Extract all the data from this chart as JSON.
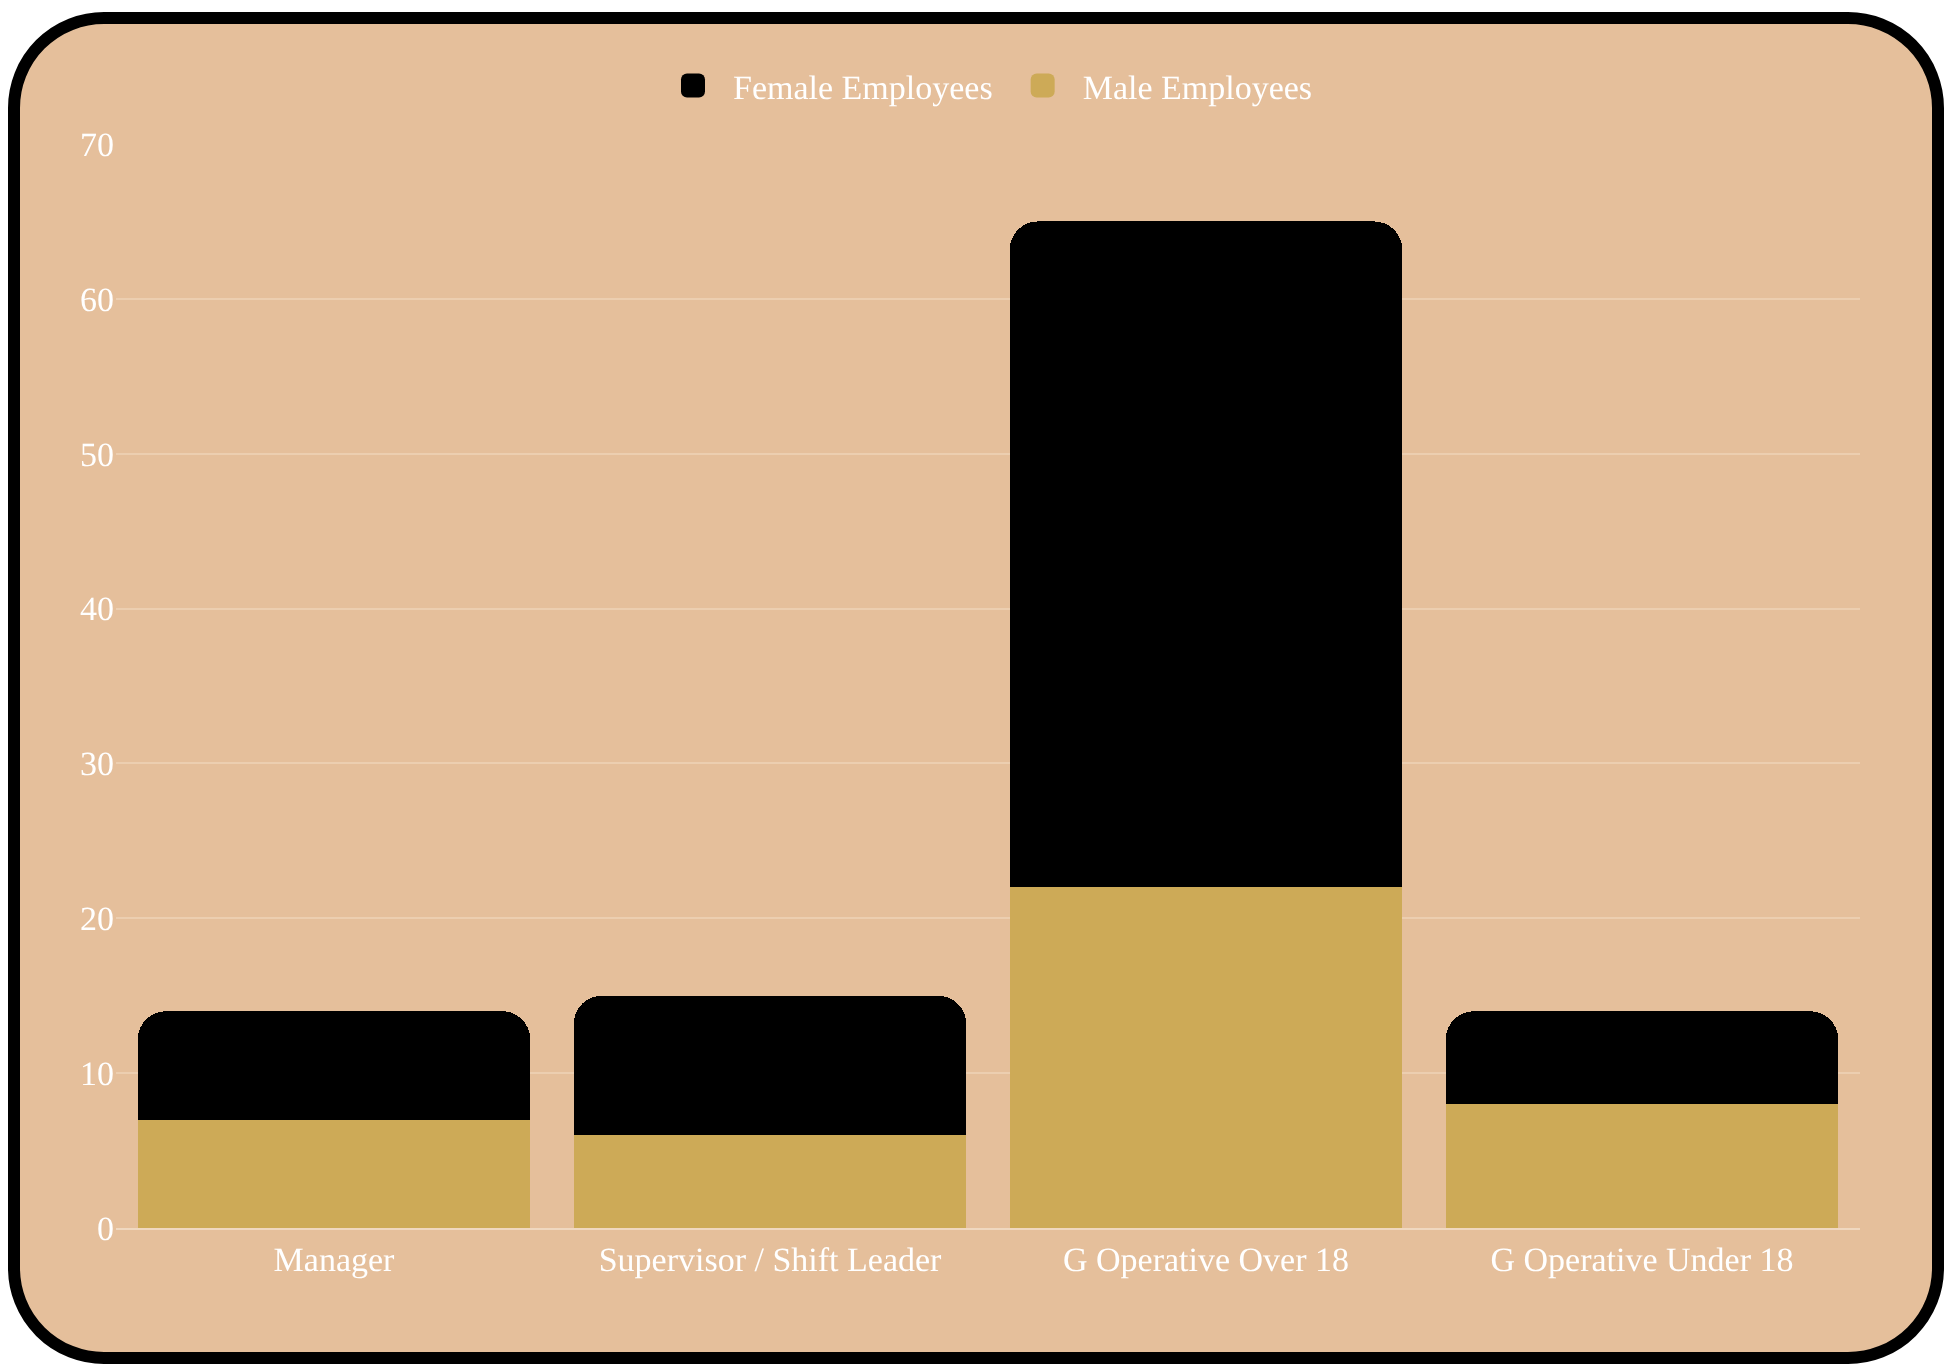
{
  "chart_data": {
    "type": "bar",
    "stacked": true,
    "categories": [
      "Manager",
      "Supervisor / Shift Leader",
      "G Operative Over 18",
      "G Operative Under 18"
    ],
    "series": [
      {
        "name": "Male Employees",
        "color": "#cdaa57",
        "values": [
          7,
          6,
          22,
          8
        ]
      },
      {
        "name": "Female Employees",
        "color": "#000000",
        "values": [
          7,
          9,
          43,
          6
        ]
      }
    ],
    "ylim": [
      0,
      70
    ],
    "yticks": [
      0,
      10,
      20,
      30,
      40,
      50,
      60,
      70
    ],
    "grid": "y",
    "legend": "top"
  }
}
